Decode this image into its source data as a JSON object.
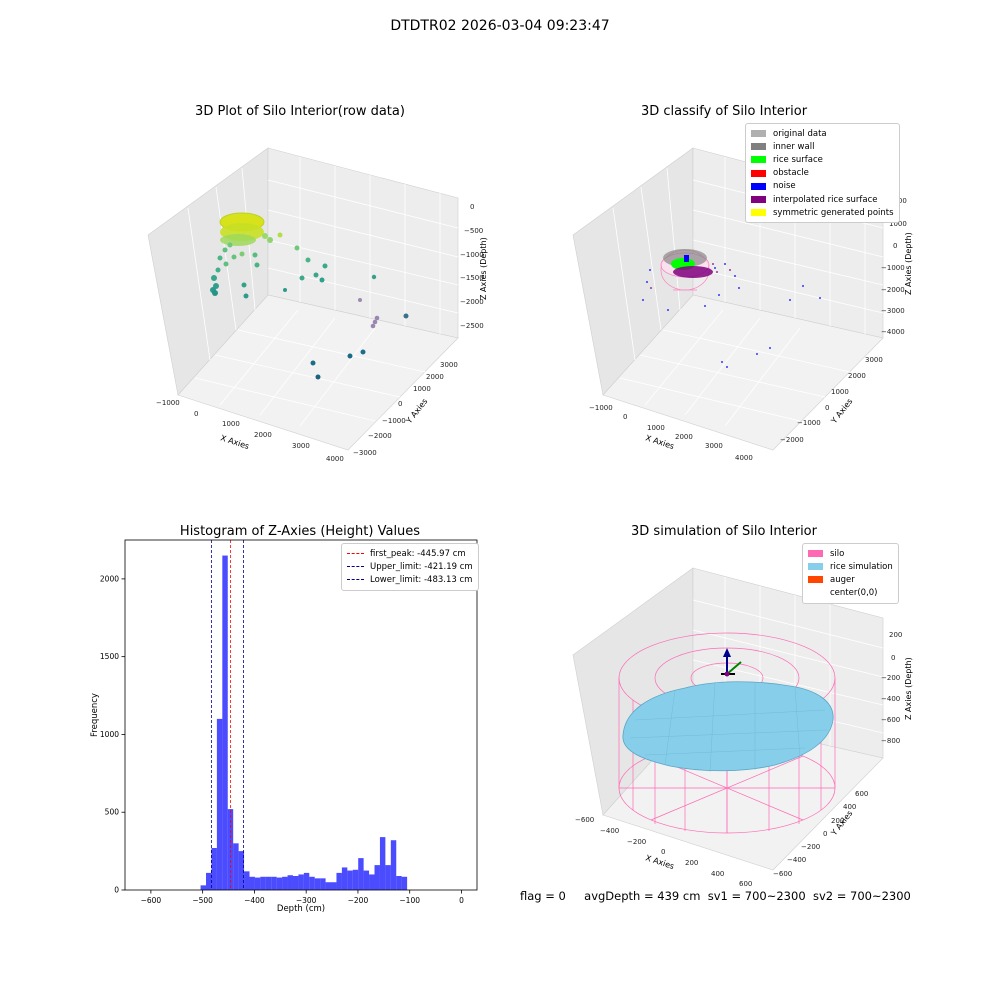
{
  "suptitle": "DTDTR02 2026-03-04 09:23:47",
  "panels": {
    "tl": {
      "title": "3D Plot of Silo Interior(row data)",
      "xlabel": "X Axies",
      "ylabel": "Y Axies",
      "zlabel": "Z Axies (Depth)",
      "xticks": [
        "−1000",
        "0",
        "1000",
        "2000",
        "3000",
        "4000"
      ],
      "yticks": [
        "−3000",
        "−2000",
        "−1000",
        "0",
        "1000",
        "2000",
        "3000"
      ],
      "zticks": [
        "0",
        "−500",
        "−1000",
        "−1500",
        "−2000",
        "−2500"
      ]
    },
    "tr": {
      "title": "3D classify of Silo Interior",
      "xlabel": "X Axies",
      "ylabel": "Y Axies",
      "zlabel": "Z Axies (Depth)",
      "xticks": [
        "−1000",
        "0",
        "1000",
        "2000",
        "3000",
        "4000"
      ],
      "yticks": [
        "−2000",
        "−1000",
        "0",
        "1000",
        "2000",
        "3000"
      ],
      "zticks": [
        "2000",
        "1000",
        "0",
        "−1000",
        "−2000",
        "−3000",
        "−4000"
      ],
      "legend": [
        {
          "label": "original data",
          "color": "#b0b0b0"
        },
        {
          "label": "inner wall",
          "color": "#808080"
        },
        {
          "label": "rice surface",
          "color": "#00ff00"
        },
        {
          "label": "obstacle",
          "color": "#ff0000"
        },
        {
          "label": "noise",
          "color": "#0000ff"
        },
        {
          "label": "interpolated rice surface",
          "color": "#800080"
        },
        {
          "label": "symmetric generated points",
          "color": "#ffff00"
        }
      ]
    },
    "br": {
      "title": "3D simulation of Silo Interior",
      "xlabel": "X Axies",
      "ylabel": "Y Axies",
      "zlabel": "Z Axies (Depth)",
      "xticks": [
        "−600",
        "−400",
        "−200",
        "0",
        "200",
        "400",
        "600"
      ],
      "yticks": [
        "−600",
        "−400",
        "−200",
        "0",
        "200",
        "400",
        "600"
      ],
      "zticks": [
        "200",
        "0",
        "−200",
        "−400",
        "−600",
        "−800"
      ],
      "legend": [
        {
          "label": "silo",
          "color": "#ff69b4"
        },
        {
          "label": "rice simulation",
          "color": "#87ceeb"
        },
        {
          "label": "auger",
          "color": "#ff4500"
        },
        {
          "label": "center(0,0)",
          "color": "#ffffff"
        }
      ]
    }
  },
  "status": {
    "flag": "flag = 0",
    "avg_depth": "avgDepth = 439 cm",
    "sv1": "sv1 = 700~2300",
    "sv2": "sv2 = 700~2300"
  },
  "chart_data": [
    {
      "type": "histogram",
      "title": "Histogram of Z-Axies (Height) Values",
      "xlabel": "Depth (cm)",
      "ylabel": "Frequency",
      "xlim": [
        -650,
        30
      ],
      "ylim": [
        0,
        2250
      ],
      "xticks": [
        -600,
        -500,
        -400,
        -300,
        -200,
        -100,
        0
      ],
      "yticks": [
        0,
        500,
        1000,
        1500,
        2000
      ],
      "bar_color": "#0000ff",
      "bin_width": 10.5,
      "bins": [
        {
          "start": -504,
          "value": 30
        },
        {
          "start": -493.5,
          "value": 110
        },
        {
          "start": -483,
          "value": 270
        },
        {
          "start": -472.5,
          "value": 1100
        },
        {
          "start": -462,
          "value": 2150
        },
        {
          "start": -451.5,
          "value": 520
        },
        {
          "start": -441,
          "value": 300
        },
        {
          "start": -430.5,
          "value": 250
        },
        {
          "start": -420,
          "value": 120
        },
        {
          "start": -409.5,
          "value": 85
        },
        {
          "start": -399,
          "value": 80
        },
        {
          "start": -388.5,
          "value": 85
        },
        {
          "start": -378,
          "value": 85
        },
        {
          "start": -367.5,
          "value": 85
        },
        {
          "start": -357,
          "value": 80
        },
        {
          "start": -346.5,
          "value": 85
        },
        {
          "start": -336,
          "value": 95
        },
        {
          "start": -325.5,
          "value": 90
        },
        {
          "start": -315,
          "value": 100
        },
        {
          "start": -304.5,
          "value": 110
        },
        {
          "start": -294,
          "value": 85
        },
        {
          "start": -283.5,
          "value": 75
        },
        {
          "start": -273,
          "value": 75
        },
        {
          "start": -262.5,
          "value": 50
        },
        {
          "start": -252,
          "value": 50
        },
        {
          "start": -241.5,
          "value": 110
        },
        {
          "start": -231,
          "value": 145
        },
        {
          "start": -220.5,
          "value": 125
        },
        {
          "start": -210,
          "value": 130
        },
        {
          "start": -199.5,
          "value": 205
        },
        {
          "start": -189,
          "value": 125
        },
        {
          "start": -178.5,
          "value": 100
        },
        {
          "start": -168,
          "value": 160
        },
        {
          "start": -157.5,
          "value": 340
        },
        {
          "start": -147,
          "value": 160
        },
        {
          "start": -136.5,
          "value": 320
        },
        {
          "start": -126,
          "value": 90
        },
        {
          "start": -115.5,
          "value": 85
        }
      ],
      "vlines": [
        {
          "label": "first_peak: -445.97 cm",
          "x": -445.97,
          "color": "#ff0000"
        },
        {
          "label": "Upper_limit: -421.19 cm",
          "x": -421.19,
          "color": "#00008b"
        },
        {
          "label": "Lower_limit: -483.13 cm",
          "x": -483.13,
          "color": "#00008b"
        }
      ]
    }
  ]
}
